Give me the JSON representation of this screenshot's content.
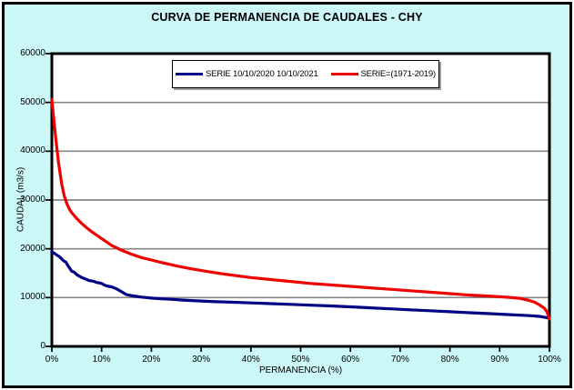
{
  "title": "CURVA DE PERMANENCIA DE CAUDALES - CHY",
  "colors": {
    "chart_background": "#cbf7f7",
    "plot_background": "#ffffff",
    "gridline": "#858585",
    "axis": "#000000",
    "series_blue": "#000085",
    "series_red": "#ee0000",
    "legend_shadow": "#9a9a9a"
  },
  "chart_data": {
    "type": "line",
    "title": "CURVA DE PERMANENCIA DE CAUDALES - CHY",
    "xlabel": "PERMANENCIA (%)",
    "ylabel": "CAUDAL (m3/s)",
    "xlim": [
      0,
      100
    ],
    "ylim": [
      0,
      60000
    ],
    "grid": "horizontal-only",
    "legend_position": "top-center-inside",
    "x_ticks": [
      {
        "v": 0,
        "label": "0%"
      },
      {
        "v": 10,
        "label": "10%"
      },
      {
        "v": 20,
        "label": "20%"
      },
      {
        "v": 30,
        "label": "30%"
      },
      {
        "v": 40,
        "label": "40%"
      },
      {
        "v": 50,
        "label": "50%"
      },
      {
        "v": 60,
        "label": "60%"
      },
      {
        "v": 70,
        "label": "70%"
      },
      {
        "v": 80,
        "label": "80%"
      },
      {
        "v": 90,
        "label": "90%"
      },
      {
        "v": 100,
        "label": "100%"
      }
    ],
    "y_ticks": [
      {
        "v": 0,
        "label": "0"
      },
      {
        "v": 10000,
        "label": "10000"
      },
      {
        "v": 20000,
        "label": "20000"
      },
      {
        "v": 30000,
        "label": "30000"
      },
      {
        "v": 40000,
        "label": "40000"
      },
      {
        "v": 50000,
        "label": "50000"
      },
      {
        "v": 60000,
        "label": "60000"
      }
    ],
    "series": [
      {
        "name": "SERIE 10/10/2020 10/10/2021",
        "color": "#000085",
        "x": [
          0,
          0.5,
          1,
          1.5,
          2,
          2.4,
          2.8,
          3.2,
          3.6,
          4,
          4.5,
          5,
          5.5,
          6,
          6.5,
          7,
          7.5,
          8,
          8.5,
          9,
          9.5,
          10,
          10.5,
          11,
          11.5,
          12,
          12.5,
          13,
          13.5,
          14,
          14.5,
          15,
          16,
          17,
          18,
          19,
          20,
          22,
          24,
          26,
          28,
          30,
          33,
          36,
          40,
          44,
          48,
          52,
          56,
          60,
          64,
          68,
          72,
          76,
          80,
          84,
          88,
          92,
          96,
          98,
          100
        ],
        "y": [
          19300,
          19100,
          18700,
          18400,
          17900,
          17500,
          17300,
          16600,
          16000,
          15400,
          15200,
          14700,
          14400,
          14100,
          13900,
          13700,
          13500,
          13400,
          13300,
          13100,
          13000,
          12900,
          12600,
          12400,
          12300,
          12200,
          12000,
          11800,
          11500,
          11200,
          10900,
          10600,
          10400,
          10250,
          10100,
          10000,
          9900,
          9750,
          9650,
          9500,
          9400,
          9300,
          9150,
          9050,
          8900,
          8750,
          8600,
          8450,
          8300,
          8100,
          7900,
          7700,
          7500,
          7300,
          7100,
          6900,
          6700,
          6500,
          6300,
          6150,
          5800
        ]
      },
      {
        "name": "SERIE=(1971-2019)",
        "color": "#ee0000",
        "x": [
          0,
          0.2,
          0.5,
          0.8,
          1,
          1.3,
          1.6,
          2,
          2.5,
          3,
          3.5,
          4,
          5,
          6,
          7,
          8,
          9,
          10,
          11,
          12,
          13,
          14,
          15,
          16,
          18,
          20,
          22,
          25,
          28,
          31,
          34,
          37,
          40,
          44,
          48,
          52,
          56,
          60,
          64,
          68,
          72,
          76,
          80,
          84,
          88,
          92,
          94,
          96,
          97,
          98,
          99,
          99.5,
          100
        ],
        "y": [
          50600,
          48500,
          45500,
          42500,
          40600,
          38000,
          35800,
          33200,
          30800,
          29300,
          28200,
          27400,
          26200,
          25200,
          24300,
          23500,
          22800,
          22100,
          21400,
          20700,
          20200,
          19700,
          19300,
          18900,
          18200,
          17700,
          17200,
          16500,
          15900,
          15400,
          14900,
          14500,
          14100,
          13700,
          13300,
          12900,
          12600,
          12300,
          12000,
          11700,
          11400,
          11100,
          10800,
          10500,
          10300,
          10050,
          9850,
          9400,
          9050,
          8500,
          7800,
          7100,
          5600
        ]
      }
    ]
  }
}
